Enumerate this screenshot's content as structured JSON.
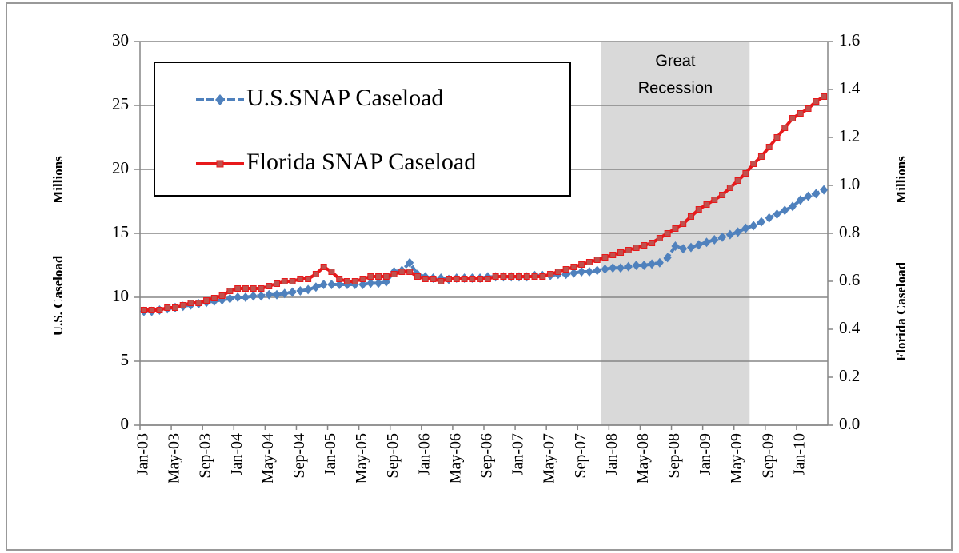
{
  "chart_data": {
    "type": "line",
    "categories": [
      "Jan-03",
      null,
      null,
      null,
      "May-03",
      null,
      null,
      null,
      "Sep-03",
      null,
      null,
      null,
      "Jan-04",
      null,
      null,
      null,
      "May-04",
      null,
      null,
      null,
      "Sep-04",
      null,
      null,
      null,
      "Jan-05",
      null,
      null,
      null,
      "May-05",
      null,
      null,
      null,
      "Sep-05",
      null,
      null,
      null,
      "Jan-06",
      null,
      null,
      null,
      "May-06",
      null,
      null,
      null,
      "Sep-06",
      null,
      null,
      null,
      "Jan-07",
      null,
      null,
      null,
      "May-07",
      null,
      null,
      null,
      "Sep-07",
      null,
      null,
      null,
      "Jan-08",
      null,
      null,
      null,
      "May-08",
      null,
      null,
      null,
      "Sep-08",
      null,
      null,
      null,
      "Jan-09",
      null,
      null,
      null,
      "May-09",
      null,
      null,
      null,
      "Sep-09",
      null,
      null,
      null,
      "Jan-10",
      null,
      null,
      null
    ],
    "series": [
      {
        "name": "U.S.SNAP Caseload",
        "color": "#4f81bd",
        "marker": "diamond",
        "values": [
          8.9,
          8.9,
          9.0,
          9.1,
          9.2,
          9.3,
          9.4,
          9.5,
          9.6,
          9.7,
          9.8,
          9.9,
          10.0,
          10.0,
          10.1,
          10.1,
          10.2,
          10.2,
          10.3,
          10.4,
          10.5,
          10.6,
          10.8,
          11.0,
          11.0,
          11.0,
          11.0,
          11.0,
          11.0,
          11.1,
          11.1,
          11.2,
          12.0,
          12.1,
          12.7,
          11.8,
          11.6,
          11.5,
          11.5,
          11.4,
          11.5,
          11.5,
          11.5,
          11.5,
          11.6,
          11.6,
          11.6,
          11.6,
          11.6,
          11.6,
          11.7,
          11.7,
          11.7,
          11.8,
          11.8,
          11.9,
          12.0,
          12.0,
          12.1,
          12.2,
          12.3,
          12.3,
          12.4,
          12.5,
          12.5,
          12.6,
          12.7,
          13.1,
          14.0,
          13.8,
          13.9,
          14.1,
          14.3,
          14.5,
          14.7,
          14.9,
          15.1,
          15.4,
          15.6,
          15.9,
          16.2,
          16.5,
          16.8,
          17.1,
          17.6,
          17.9,
          18.1,
          18.4
        ]
      },
      {
        "name": "Florida SNAP Caseload",
        "color": "#e8191b",
        "marker": "square",
        "axis": "y2",
        "values": [
          0.48,
          0.48,
          0.48,
          0.49,
          0.49,
          0.5,
          0.51,
          0.51,
          0.52,
          0.53,
          0.54,
          0.56,
          0.57,
          0.57,
          0.57,
          0.57,
          0.58,
          0.59,
          0.6,
          0.6,
          0.61,
          0.61,
          0.63,
          0.66,
          0.64,
          0.61,
          0.6,
          0.6,
          0.61,
          0.62,
          0.62,
          0.62,
          0.63,
          0.64,
          0.64,
          0.62,
          0.61,
          0.61,
          0.6,
          0.61,
          0.61,
          0.61,
          0.61,
          0.61,
          0.61,
          0.62,
          0.62,
          0.62,
          0.62,
          0.62,
          0.62,
          0.62,
          0.63,
          0.64,
          0.65,
          0.66,
          0.67,
          0.68,
          0.69,
          0.7,
          0.71,
          0.72,
          0.73,
          0.74,
          0.75,
          0.76,
          0.78,
          0.8,
          0.82,
          0.84,
          0.87,
          0.9,
          0.92,
          0.94,
          0.96,
          0.99,
          1.02,
          1.05,
          1.09,
          1.12,
          1.16,
          1.2,
          1.24,
          1.28,
          1.3,
          1.32,
          1.35,
          1.37
        ]
      }
    ],
    "ylabel": "U.S. Caseload",
    "ylabel_unit": "Millions",
    "y2label": "Florida Caseload",
    "y2label_unit": "Millions",
    "ylim": [
      0,
      30
    ],
    "yticks": [
      0,
      5,
      10,
      15,
      20,
      25,
      30
    ],
    "y2lim": [
      0,
      1.6
    ],
    "y2ticks": [
      {
        "value": 0,
        "label": "0.0"
      },
      0.2,
      0.4,
      0.6,
      0.8,
      {
        "value": 1,
        "label": "1.0"
      },
      1.2,
      1.4,
      1.6
    ],
    "grid": true,
    "shade": {
      "label": [
        "Great",
        "Recession"
      ],
      "range": [
        59,
        78
      ]
    },
    "legend": "upper left"
  }
}
